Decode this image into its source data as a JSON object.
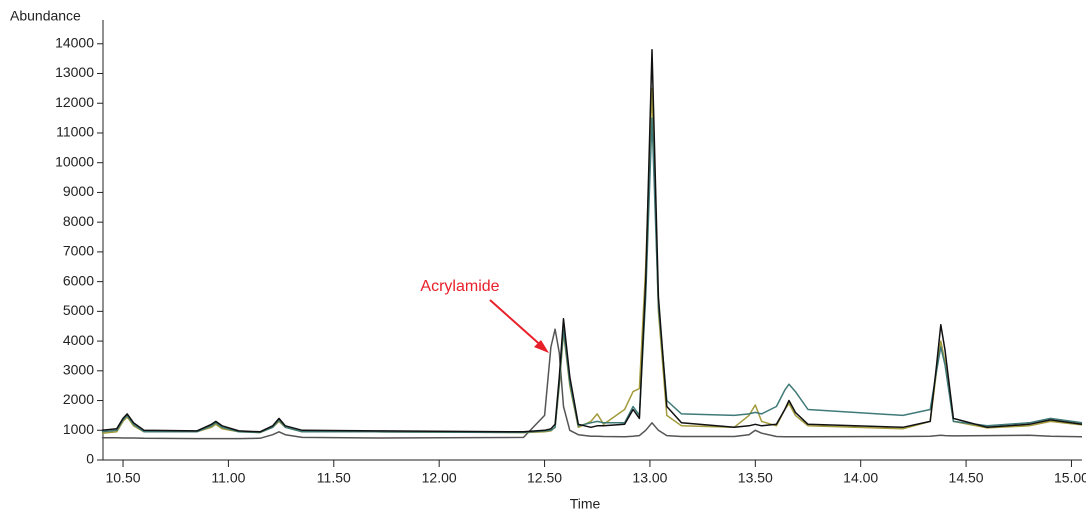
{
  "chart_data": {
    "type": "line",
    "y_label": "Abundance",
    "x_label": "Time",
    "annotations": [
      {
        "text": "Acrylamide",
        "color": "#e8202a"
      }
    ],
    "x": [
      10.4,
      10.47,
      10.5,
      10.52,
      10.55,
      10.6,
      10.85,
      10.92,
      10.94,
      10.97,
      11.05,
      11.15,
      11.21,
      11.24,
      11.27,
      11.35,
      11.7,
      12.4,
      12.5,
      12.53,
      12.55,
      12.57,
      12.59,
      12.62,
      12.66,
      12.72,
      12.75,
      12.78,
      12.88,
      12.92,
      12.95,
      12.98,
      13.01,
      13.04,
      13.08,
      13.15,
      13.4,
      13.47,
      13.5,
      13.53,
      13.6,
      13.64,
      13.66,
      13.69,
      13.75,
      14.2,
      14.33,
      14.36,
      14.38,
      14.4,
      14.44,
      14.6,
      14.8,
      14.9,
      15.05
    ],
    "series": [
      {
        "color": "#555555",
        "values": [
          750,
          750,
          740,
          740,
          740,
          730,
          720,
          720,
          720,
          720,
          720,
          730,
          850,
          950,
          850,
          760,
          740,
          760,
          1500,
          3800,
          4400,
          3600,
          1800,
          1000,
          850,
          800,
          800,
          790,
          780,
          800,
          820,
          1000,
          1250,
          1000,
          820,
          790,
          790,
          850,
          1000,
          900,
          790,
          780,
          780,
          780,
          780,
          790,
          800,
          820,
          830,
          820,
          810,
          820,
          830,
          800,
          780
        ]
      },
      {
        "color": "#a39b3c",
        "values": [
          900,
          950,
          1300,
          1450,
          1150,
          950,
          950,
          1100,
          1200,
          1050,
          950,
          920,
          1100,
          1300,
          1100,
          950,
          950,
          920,
          950,
          980,
          1100,
          2500,
          4300,
          2500,
          1100,
          1300,
          1550,
          1200,
          1700,
          2300,
          2400,
          6500,
          12500,
          5000,
          1500,
          1150,
          1100,
          1500,
          1850,
          1300,
          1150,
          1700,
          1900,
          1500,
          1150,
          1050,
          1300,
          3000,
          4000,
          3300,
          1300,
          1080,
          1150,
          1300,
          1180
        ]
      },
      {
        "color": "#3f7a78",
        "values": [
          950,
          1000,
          1350,
          1500,
          1200,
          950,
          950,
          1150,
          1250,
          1100,
          950,
          930,
          1100,
          1350,
          1100,
          950,
          950,
          930,
          980,
          1000,
          1100,
          2600,
          4400,
          2600,
          1150,
          1250,
          1300,
          1250,
          1250,
          1800,
          1500,
          5500,
          11500,
          5200,
          2000,
          1550,
          1500,
          1550,
          1600,
          1550,
          1800,
          2350,
          2550,
          2300,
          1700,
          1500,
          1700,
          3000,
          3800,
          3200,
          1300,
          1150,
          1250,
          1400,
          1250
        ]
      },
      {
        "color": "#111111",
        "values": [
          1000,
          1050,
          1400,
          1550,
          1250,
          1000,
          980,
          1200,
          1300,
          1150,
          980,
          950,
          1150,
          1400,
          1150,
          1000,
          980,
          950,
          1000,
          1050,
          1200,
          2800,
          4750,
          2800,
          1200,
          1100,
          1150,
          1150,
          1200,
          1700,
          1400,
          6000,
          13800,
          5500,
          1800,
          1250,
          1100,
          1150,
          1200,
          1150,
          1200,
          1700,
          2000,
          1600,
          1200,
          1100,
          1300,
          3200,
          4550,
          3700,
          1400,
          1100,
          1200,
          1350,
          1200
        ]
      }
    ],
    "xlim": [
      10.405,
      15.05
    ],
    "ylim": [
      0,
      14800
    ],
    "xticks": [
      {
        "value": 10.5,
        "label": "10.50"
      },
      {
        "value": 11.0,
        "label": "11.00"
      },
      {
        "value": 11.5,
        "label": "11.50"
      },
      {
        "value": 12.0,
        "label": "12.00"
      },
      {
        "value": 12.5,
        "label": "12.50"
      },
      {
        "value": 13.0,
        "label": "13.00"
      },
      {
        "value": 13.5,
        "label": "13.50"
      },
      {
        "value": 14.0,
        "label": "14.00"
      },
      {
        "value": 14.5,
        "label": "14.50"
      },
      {
        "value": 15.0,
        "label": "15.00"
      }
    ],
    "yticks": [
      0,
      1000,
      2000,
      3000,
      4000,
      5000,
      6000,
      7000,
      8000,
      9000,
      10000,
      11000,
      12000,
      13000,
      14000
    ],
    "grid": false
  }
}
